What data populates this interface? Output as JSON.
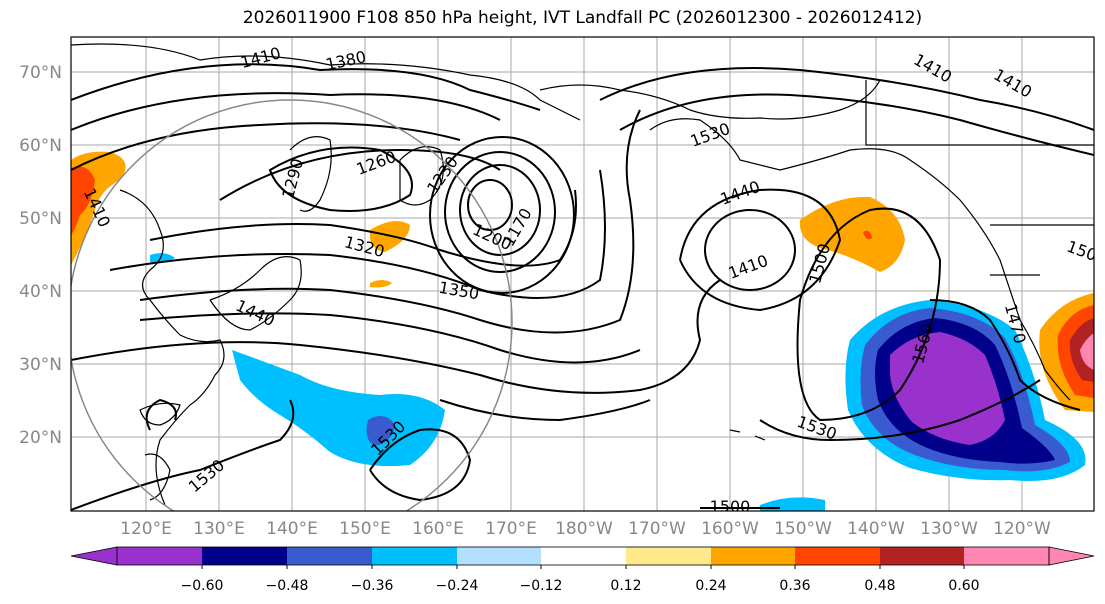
{
  "title": "2026011900 F108 850 hPa height, IVT Landfall PC (2026012300 - 2026012412)",
  "lat_labels": [
    "70°N",
    "60°N",
    "50°N",
    "40°N",
    "30°N",
    "20°N"
  ],
  "lon_labels": [
    "120°E",
    "130°E",
    "140°E",
    "150°E",
    "160°E",
    "170°E",
    "180°W",
    "170°W",
    "160°W",
    "150°W",
    "140°W",
    "130°W",
    "120°W"
  ],
  "contour_labels": [
    "1410",
    "1380",
    "1260",
    "1290",
    "1230",
    "1200",
    "1170",
    "1320",
    "1350",
    "1440",
    "1410",
    "1530",
    "1440",
    "1410",
    "1500",
    "1560",
    "1470",
    "1530",
    "1530",
    "1500",
    "1410",
    "1410",
    "150"
  ],
  "colorbar": {
    "colors": [
      "#9932cc",
      "#00008b",
      "#3a5bcf",
      "#00bfff",
      "#b3e0ff",
      "#ffffff",
      "#ffe98a",
      "#ffa500",
      "#ff4500",
      "#b22222",
      "#ff85b3"
    ],
    "ticks": [
      "−0.60",
      "−0.48",
      "−0.36",
      "−0.24",
      "−0.12",
      "0.12",
      "0.24",
      "0.36",
      "0.48",
      "0.60"
    ]
  }
}
